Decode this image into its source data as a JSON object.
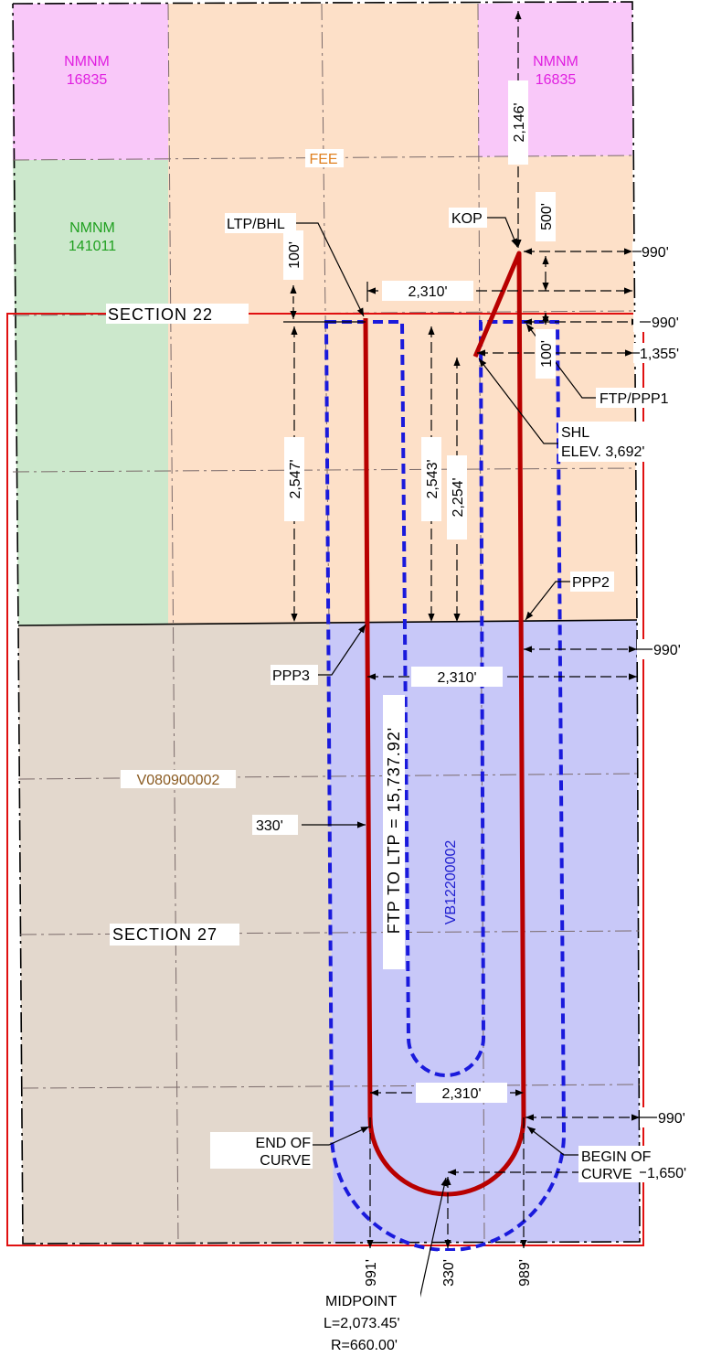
{
  "colors": {
    "nmnm_16835": "#f9c8f9",
    "nmnm_141011": "#cce8cc",
    "fee": "#fde0c8",
    "v080900002": "#e3d8cd",
    "vb1220000": "#c8c8f8",
    "well_path": "#b80000",
    "setback": "#1a1adc",
    "project_area": "#e01010",
    "nmnm_text": "#e020e0",
    "nmnm_green_text": "#20a020",
    "fee_text": "#e08020",
    "v_text": "#8a5a20",
    "vb_text": "#2020d0"
  },
  "leases": {
    "nmnm_16835_a": {
      "line1": "NMNM",
      "line2": "16835"
    },
    "nmnm_16835_b": {
      "line1": "NMNM",
      "line2": "16835"
    },
    "nmnm_141011": {
      "line1": "NMNM",
      "line2": "141011"
    },
    "fee": "FEE",
    "v080900002": "V080900002",
    "vb12200002": "VB12200002"
  },
  "sections": {
    "s22": "SECTION 22",
    "s27": "SECTION 27"
  },
  "callouts": {
    "ltp_bhl": "LTP/BHL",
    "kop": "KOP",
    "ftp_ppp1": "FTP/PPP1",
    "shl": "SHL",
    "shl_elev": "ELEV. 3,692'",
    "ppp2": "PPP2",
    "ppp3": "PPP3",
    "end_of_curve_1": "END OF",
    "end_of_curve_2": "CURVE",
    "begin_of_curve_1": "BEGIN OF",
    "begin_of_curve_2": "CURVE",
    "midpoint": "MIDPOINT",
    "curve_length": "L=2,073.45'",
    "curve_radius": "R=660.00'",
    "lateral_length": "FTP TO LTP = 15,737.92'"
  },
  "dimensions": {
    "d_2146": "2,146'",
    "d_500": "500'",
    "d_990_top": "990'",
    "d_100_left": "100'",
    "d_2310_top": "2,310'",
    "d_990_sec": "990'",
    "d_1355": "1,355'",
    "d_100_right": "100'",
    "d_2547": "2,547'",
    "d_2543": "2,543'",
    "d_2254": "2,254'",
    "d_990_mid": "990'",
    "d_2310_mid": "2,310'",
    "d_330_left": "330'",
    "d_2310_bot": "2,310'",
    "d_990_bot": "990'",
    "d_1650": "1,650'",
    "d_991": "991'",
    "d_330_bot": "330'",
    "d_989": "989'"
  }
}
